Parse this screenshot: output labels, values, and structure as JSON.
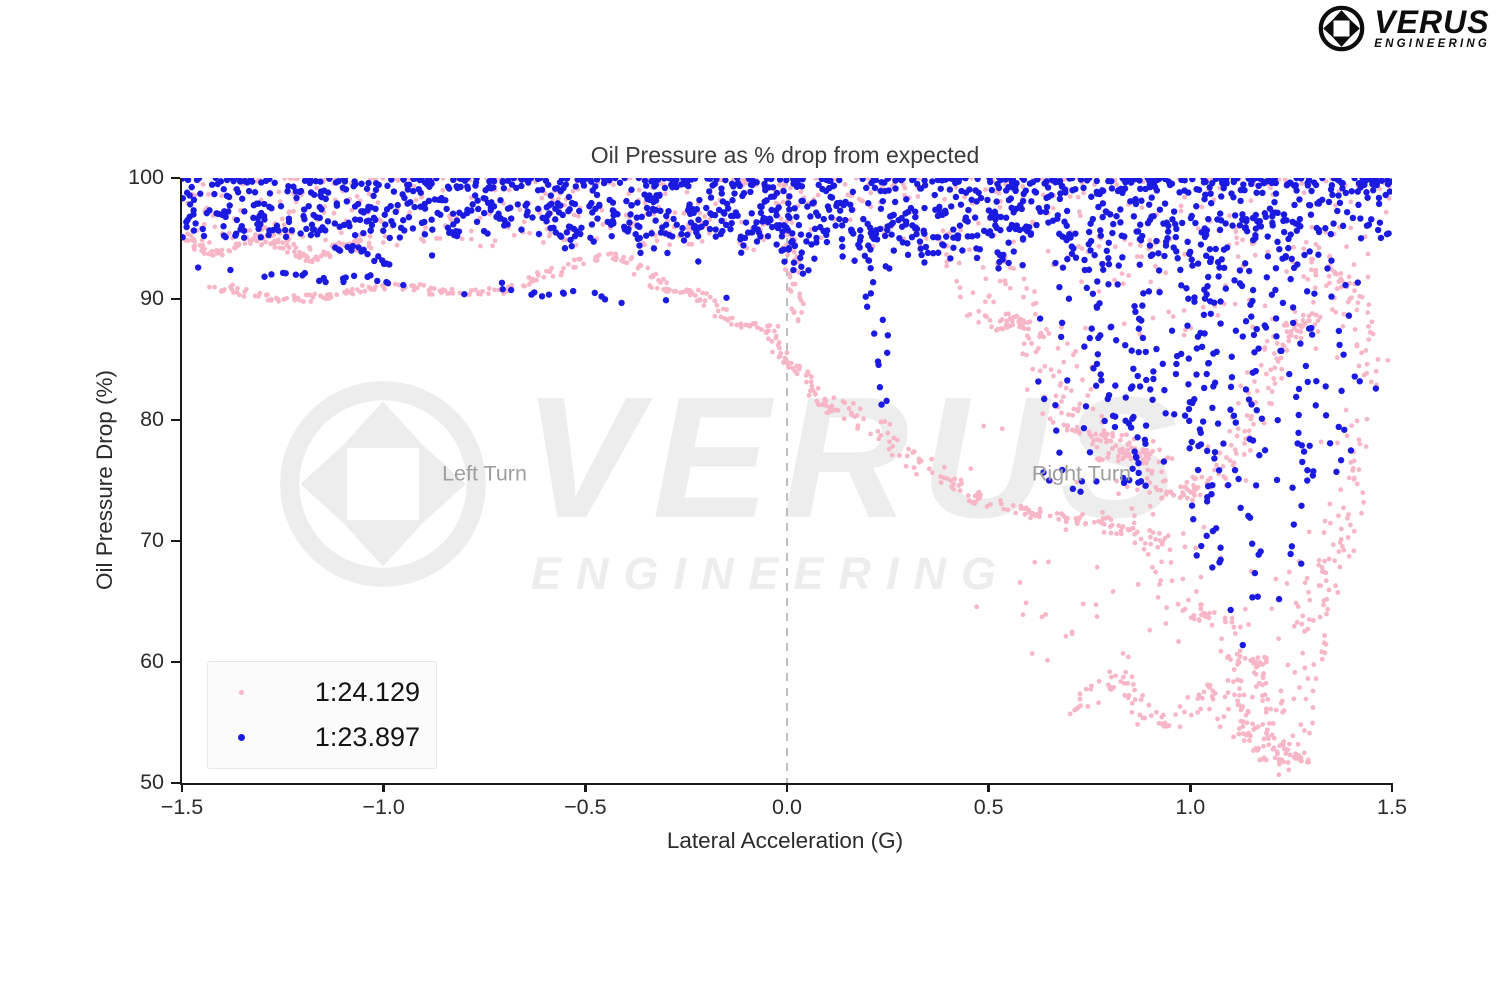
{
  "brand": {
    "name": "VERUS",
    "sub": "ENGINEERING"
  },
  "watermark": {
    "text": "VERUS",
    "sub": "ENGINEERING"
  },
  "chart_data": {
    "type": "scatter",
    "title": "Oil Pressure as % drop from expected",
    "xlabel": "Lateral Acceleration (G)",
    "ylabel": "Oil Pressure Drop (%)",
    "xlim": [
      -1.5,
      1.5
    ],
    "ylim": [
      50,
      100
    ],
    "x_ticks": [
      -1.5,
      -1.0,
      -0.5,
      0.0,
      0.5,
      1.0,
      1.5
    ],
    "x_tick_labels": [
      "−1.5",
      "−1.0",
      "−0.5",
      "0.0",
      "0.5",
      "1.0",
      "1.5"
    ],
    "y_ticks": [
      100,
      90,
      80,
      70,
      60,
      50
    ],
    "y_tick_labels": [
      "100",
      "90",
      "80",
      "70",
      "60",
      "50"
    ],
    "grid": false,
    "legend_position": "lower left",
    "reference_line": {
      "x": 0.0,
      "style": "dashed",
      "color": "#bdbdbd",
      "width": 2,
      "dash": [
        8,
        7
      ]
    },
    "annotations": [
      {
        "text": "Left Turn",
        "x": -0.75,
        "y": 75.5,
        "color": "#9e9e9e"
      },
      {
        "text": "Right Turn",
        "x": 0.73,
        "y": 75.5,
        "color": "#9e9e9e"
      }
    ],
    "series": [
      {
        "name": "1:24.129",
        "color": "#f7b6c6",
        "marker_radius": 2.4,
        "legend_marker_diameter": 5,
        "clusters": [
          {
            "kind": "band",
            "seed": 11,
            "n": 430,
            "x": [
              -1.5,
              1.5
            ],
            "y_top": 100,
            "y_min": 94,
            "pow": 2.6
          },
          {
            "kind": "uniform",
            "seed": 12,
            "n": 110,
            "x": [
              -1.5,
              0.35
            ],
            "y": [
              94.2,
              97.5
            ]
          },
          {
            "kind": "walk",
            "seed": 13,
            "n": 120,
            "from": [
              -1.5,
              94.8
            ],
            "to": [
              -1.05,
              93.8
            ],
            "wobble": 0.8,
            "y_jitter": 0.25,
            "x_jitter": 0.02
          },
          {
            "kind": "walk",
            "seed": 14,
            "n": 90,
            "from": [
              -1.42,
              90.8
            ],
            "to": [
              -0.85,
              90.3
            ],
            "wobble": 0.6,
            "y_jitter": 0.3,
            "x_jitter": 0.03
          },
          {
            "kind": "walk",
            "seed": 15,
            "n": 70,
            "from": [
              -0.85,
              90.3
            ],
            "to": [
              -0.42,
              93.3
            ],
            "wobble": 0.5,
            "y_jitter": 0.25,
            "x_jitter": 0.03
          },
          {
            "kind": "walk",
            "seed": 16,
            "n": 80,
            "from": [
              -0.42,
              93.2
            ],
            "to": [
              -0.05,
              87.2
            ],
            "wobble": 0.4,
            "y_jitter": 0.25,
            "x_jitter": 0.03
          },
          {
            "kind": "walk",
            "seed": 17,
            "n": 60,
            "from": [
              -0.05,
              87.2
            ],
            "to": [
              0.12,
              80.3
            ],
            "wobble": 0.3,
            "y_jitter": 0.2,
            "x_jitter": 0.02
          },
          {
            "kind": "walk",
            "seed": 18,
            "n": 55,
            "from": [
              -0.02,
              99.8
            ],
            "to": [
              0.03,
              88.5
            ],
            "wobble": 0.2,
            "x_jitter": 0.02,
            "y_jitter": 0.4
          },
          {
            "kind": "walk",
            "seed": 19,
            "n": 150,
            "from": [
              0.12,
              80.3
            ],
            "to": [
              0.95,
              68.0
            ],
            "wobble": 1.5,
            "y_jitter": 0.4,
            "x_jitter": 0.04
          },
          {
            "kind": "walk",
            "seed": 20,
            "n": 140,
            "from": [
              0.4,
              94.5
            ],
            "to": [
              0.95,
              73.0
            ],
            "wobble": 2.2,
            "y_jitter": 0.5,
            "x_jitter": 0.05
          },
          {
            "kind": "walk",
            "seed": 21,
            "n": 130,
            "from": [
              0.95,
              73.0
            ],
            "to": [
              1.32,
              88.0
            ],
            "wobble": 2.0,
            "y_jitter": 0.5,
            "x_jitter": 0.05
          },
          {
            "kind": "walk",
            "seed": 22,
            "n": 130,
            "from": [
              0.55,
              90.5
            ],
            "to": [
              1.12,
              60.0
            ],
            "wobble": 2.4,
            "y_jitter": 0.5,
            "x_jitter": 0.05
          },
          {
            "kind": "walk",
            "seed": 23,
            "n": 110,
            "from": [
              1.12,
              60.0
            ],
            "to": [
              1.24,
              51.5
            ],
            "wobble": 1.2,
            "y_jitter": 0.5,
            "x_jitter": 0.06
          },
          {
            "kind": "walk",
            "seed": 24,
            "n": 110,
            "from": [
              1.24,
              51.5
            ],
            "to": [
              1.42,
              81.0
            ],
            "wobble": 1.8,
            "y_jitter": 0.5,
            "x_jitter": 0.05
          },
          {
            "kind": "walk",
            "seed": 25,
            "n": 100,
            "from": [
              0.72,
              57.5
            ],
            "to": [
              1.18,
              55.5
            ],
            "wobble": 1.6,
            "y_jitter": 0.6,
            "x_jitter": 0.05
          },
          {
            "kind": "uniform",
            "seed": 26,
            "n": 90,
            "x": [
              0.5,
              1.45
            ],
            "y": [
              87,
              96
            ]
          },
          {
            "kind": "uniform",
            "seed": 27,
            "n": 70,
            "x": [
              0.45,
              1.4
            ],
            "y": [
              60,
              87
            ]
          },
          {
            "kind": "walk",
            "seed": 28,
            "n": 60,
            "from": [
              1.3,
              95.0
            ],
            "to": [
              1.47,
              84.0
            ],
            "wobble": 1.0,
            "y_jitter": 0.4,
            "x_jitter": 0.04
          }
        ]
      },
      {
        "name": "1:23.897",
        "color": "#1a1ae0",
        "marker_radius": 3.2,
        "legend_marker_diameter": 7,
        "clusters": [
          {
            "kind": "band",
            "seed": 31,
            "n": 900,
            "x": [
              -1.5,
              1.5
            ],
            "y_top": 100,
            "y_min": 95,
            "pow": 2.1
          },
          {
            "kind": "uniform",
            "seed": 32,
            "n": 230,
            "x": [
              -1.5,
              0.6
            ],
            "y": [
              95,
              98.2
            ]
          },
          {
            "kind": "uniform",
            "seed": 33,
            "n": 110,
            "x": [
              0.65,
              1.35
            ],
            "y": [
              92.5,
              97
            ]
          },
          {
            "kind": "walk",
            "seed": 34,
            "n": 20,
            "from": [
              -1.28,
              92.1
            ],
            "to": [
              -0.97,
              91.4
            ],
            "wobble": 0.25,
            "y_jitter": 0.15,
            "x_jitter": 0.02
          },
          {
            "kind": "walk",
            "seed": 35,
            "n": 14,
            "from": [
              -0.72,
              91.2
            ],
            "to": [
              -0.44,
              89.8
            ],
            "wobble": 0.4,
            "y_jitter": 0.2,
            "x_jitter": 0.03
          },
          {
            "kind": "points",
            "pts": [
              [
                -1.46,
                92.6
              ],
              [
                -1.38,
                92.4
              ],
              [
                -0.88,
                93.6
              ],
              [
                -0.8,
                90.4
              ],
              [
                -0.3,
                89.9
              ],
              [
                -0.22,
                93.1
              ],
              [
                -0.15,
                90.1
              ],
              [
                0.25,
                87.0
              ],
              [
                1.13,
                61.4
              ],
              [
                1.1,
                64.3
              ],
              [
                1.22,
                65.2
              ],
              [
                1.35,
                90.2
              ],
              [
                1.42,
                83.2
              ],
              [
                1.46,
                82.6
              ],
              [
                1.3,
                87.6
              ],
              [
                1.38,
                85.4
              ]
            ]
          },
          {
            "kind": "walk",
            "seed": 36,
            "n": 15,
            "from": [
              0.19,
              94.6
            ],
            "to": [
              0.25,
              81.2
            ],
            "wobble": 0.2,
            "x_jitter": 0.02,
            "y_jitter": 0.4
          },
          {
            "kind": "walk",
            "seed": 37,
            "n": 34,
            "from": [
              0.9,
              95.2
            ],
            "to": [
              0.86,
              74.5
            ],
            "wobble": 0.4,
            "x_jitter": 0.035,
            "y_jitter": 0.8
          },
          {
            "kind": "walk",
            "seed": 38,
            "n": 55,
            "from": [
              1.0,
              95.5
            ],
            "to": [
              1.05,
              67.8
            ],
            "wobble": 0.3,
            "x_jitter": 0.04,
            "y_jitter": 0.9
          },
          {
            "kind": "walk",
            "seed": 39,
            "n": 30,
            "from": [
              1.12,
              93.5
            ],
            "to": [
              1.16,
              65.5
            ],
            "wobble": 0.4,
            "x_jitter": 0.035,
            "y_jitter": 0.8
          },
          {
            "kind": "walk",
            "seed": 40,
            "n": 24,
            "from": [
              1.24,
              90.5
            ],
            "to": [
              1.28,
              68.5
            ],
            "wobble": 0.5,
            "x_jitter": 0.04,
            "y_jitter": 0.8
          },
          {
            "kind": "walk",
            "seed": 41,
            "n": 18,
            "from": [
              0.77,
              95.2
            ],
            "to": [
              0.8,
              79.5
            ],
            "wobble": 0.4,
            "x_jitter": 0.03,
            "y_jitter": 0.7
          },
          {
            "kind": "uniform",
            "seed": 42,
            "n": 150,
            "x": [
              0.62,
              1.42
            ],
            "y": [
              74,
              93.5
            ]
          },
          {
            "kind": "walk",
            "seed": 43,
            "n": 22,
            "from": [
              -0.04,
              97.5
            ],
            "to": [
              0.03,
              91.8
            ],
            "wobble": 0.3,
            "x_jitter": 0.03,
            "y_jitter": 0.5
          },
          {
            "kind": "uniform",
            "seed": 44,
            "n": 40,
            "x": [
              0.05,
              0.62
            ],
            "y": [
              92.5,
              96
            ]
          },
          {
            "kind": "walk",
            "seed": 45,
            "n": 16,
            "from": [
              -1.12,
              94.2
            ],
            "to": [
              -0.98,
              93.2
            ],
            "wobble": 0.3,
            "y_jitter": 0.2,
            "x_jitter": 0.02
          },
          {
            "kind": "uniform",
            "seed": 46,
            "n": 60,
            "x": [
              -0.6,
              0.6
            ],
            "y": [
              93.5,
              96
            ]
          }
        ]
      }
    ]
  }
}
